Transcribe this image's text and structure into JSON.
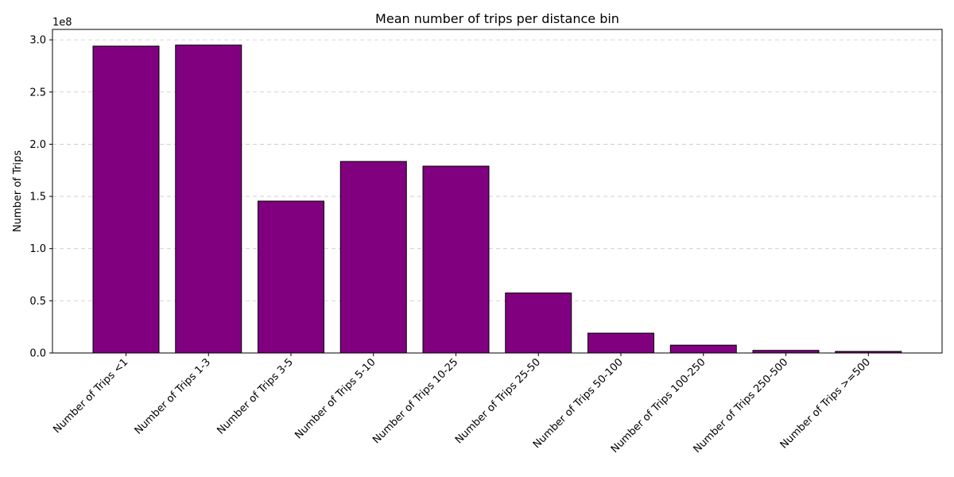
{
  "chart_data": {
    "type": "bar",
    "title": "Mean number of trips per distance bin",
    "xlabel": "",
    "ylabel": "Number of Trips",
    "offset_label": "1e8",
    "ylim": [
      0,
      310000000
    ],
    "yticks": [
      0,
      50000000,
      100000000,
      150000000,
      200000000,
      250000000,
      300000000
    ],
    "ytick_labels": [
      "0.0",
      "0.5",
      "1.0",
      "1.5",
      "2.0",
      "2.5",
      "3.0"
    ],
    "grid": "y-dashed",
    "bar_color": "#800080",
    "edge_color": "#000000",
    "categories": [
      "Number of Trips <1",
      "Number of Trips 1-3",
      "Number of Trips 3-5",
      "Number of Trips 5-10",
      "Number of Trips 10-25",
      "Number of Trips 25-50",
      "Number of Trips 50-100",
      "Number of Trips 100-250",
      "Number of Trips 250-500",
      "Number of Trips >=500"
    ],
    "values": [
      294000000,
      295000000,
      145500000,
      183500000,
      179000000,
      57500000,
      19000000,
      7500000,
      2500000,
      1500000
    ]
  }
}
